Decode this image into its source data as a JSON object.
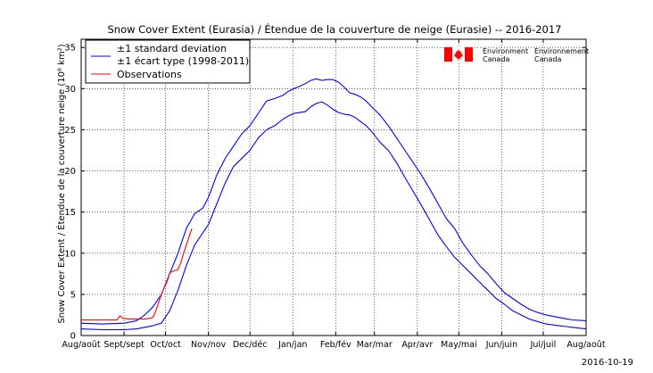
{
  "chart_data": {
    "type": "line",
    "title": "Snow Cover Extent (Eurasia) / Étendue de la couverture de neige (Eurasie) -- 2016-2017",
    "ylabel": "Snow Cover Extent / Étendue de la couverture neige (10⁶ km²)",
    "xlabel": "",
    "ylim": [
      0,
      36
    ],
    "yticks": [
      0,
      5,
      10,
      15,
      20,
      25,
      30,
      35
    ],
    "xlim": [
      0,
      365
    ],
    "grid": true,
    "x_tick_labels": [
      {
        "day": 0,
        "label": "Aug/août"
      },
      {
        "day": 31,
        "label": "Sept/sept"
      },
      {
        "day": 61,
        "label": "Oct/oct"
      },
      {
        "day": 92,
        "label": "Nov/nov"
      },
      {
        "day": 122,
        "label": "Dec/déc"
      },
      {
        "day": 153,
        "label": "Jan/jan"
      },
      {
        "day": 184,
        "label": "Feb/fév"
      },
      {
        "day": 212,
        "label": "Mar/mar"
      },
      {
        "day": 243,
        "label": "Apr/avr"
      },
      {
        "day": 273,
        "label": "May/mai"
      },
      {
        "day": 304,
        "label": "Jun/juin"
      },
      {
        "day": 334,
        "label": "Jul/juil"
      },
      {
        "day": 365,
        "label": "Aug/août"
      }
    ],
    "legend": {
      "placement": "top-left",
      "entries": [
        {
          "label_line1": "±1 standard deviation",
          "label_line2": "±1 écart type (1998-2011)",
          "color": "#0000ff"
        },
        {
          "label_line1": "Observations",
          "label_line2": "",
          "color": "#ff0000"
        }
      ]
    },
    "series": [
      {
        "name": "+1 standard deviation",
        "color": "#0000ff",
        "x": [
          0,
          15,
          31,
          40,
          46,
          52,
          58,
          64,
          70,
          76,
          82,
          88,
          92,
          98,
          104,
          110,
          116,
          122,
          128,
          134,
          140,
          146,
          150,
          154,
          158,
          162,
          166,
          170,
          174,
          178,
          182,
          186,
          190,
          194,
          198,
          202,
          206,
          210,
          216,
          222,
          228,
          234,
          240,
          246,
          252,
          258,
          264,
          270,
          276,
          282,
          288,
          294,
          300,
          306,
          312,
          318,
          324,
          330,
          336,
          345,
          355,
          365
        ],
        "values": [
          1.5,
          1.4,
          1.5,
          1.8,
          2.5,
          3.5,
          5.0,
          7.5,
          10.0,
          13.0,
          14.8,
          15.5,
          16.8,
          19.5,
          21.5,
          23.0,
          24.5,
          25.5,
          27.0,
          28.5,
          28.8,
          29.2,
          29.7,
          30.0,
          30.3,
          30.6,
          31.0,
          31.2,
          31.0,
          31.1,
          31.1,
          30.8,
          30.2,
          29.5,
          29.3,
          29.0,
          28.5,
          27.8,
          26.8,
          25.5,
          24.0,
          22.5,
          21.0,
          19.5,
          17.8,
          16.0,
          14.2,
          13.0,
          11.2,
          9.8,
          8.5,
          7.5,
          6.3,
          5.2,
          4.5,
          3.8,
          3.2,
          2.8,
          2.5,
          2.2,
          1.9,
          1.8
        ]
      },
      {
        "name": "-1 standard deviation",
        "color": "#0000ff",
        "x": [
          0,
          15,
          31,
          40,
          46,
          52,
          58,
          64,
          70,
          76,
          82,
          88,
          92,
          98,
          104,
          110,
          116,
          122,
          128,
          134,
          140,
          146,
          150,
          154,
          158,
          162,
          166,
          170,
          174,
          178,
          182,
          186,
          190,
          194,
          198,
          202,
          206,
          210,
          216,
          222,
          228,
          234,
          240,
          246,
          252,
          258,
          264,
          270,
          276,
          282,
          288,
          294,
          300,
          306,
          312,
          318,
          324,
          330,
          336,
          345,
          355,
          365
        ],
        "values": [
          0.8,
          0.7,
          0.7,
          0.8,
          1.0,
          1.2,
          1.5,
          3.0,
          5.5,
          8.5,
          11.0,
          12.5,
          13.5,
          16.0,
          18.5,
          20.5,
          21.5,
          22.5,
          24.0,
          25.0,
          25.5,
          26.3,
          26.7,
          27.0,
          27.1,
          27.2,
          27.8,
          28.2,
          28.4,
          28.0,
          27.5,
          27.1,
          26.9,
          26.8,
          26.5,
          26.0,
          25.5,
          24.8,
          23.5,
          22.5,
          21.0,
          19.2,
          17.5,
          15.8,
          14.0,
          12.2,
          10.8,
          9.5,
          8.5,
          7.5,
          6.5,
          5.5,
          4.5,
          3.8,
          3.0,
          2.5,
          2.0,
          1.7,
          1.4,
          1.2,
          1.0,
          0.8
        ]
      },
      {
        "name": "Observations",
        "color": "#ff0000",
        "x": [
          0,
          10,
          20,
          24,
          26,
          28,
          30,
          34,
          40,
          46,
          50,
          52,
          54,
          56,
          58,
          60,
          62,
          63,
          64,
          66,
          68,
          70,
          72,
          74,
          76,
          78,
          80
        ],
        "values": [
          1.9,
          1.9,
          1.9,
          1.9,
          1.9,
          2.4,
          2.1,
          2.0,
          2.0,
          2.0,
          2.1,
          2.2,
          3.0,
          4.0,
          5.0,
          5.8,
          6.5,
          7.0,
          7.6,
          7.8,
          7.9,
          8.0,
          8.8,
          10.0,
          11.0,
          12.0,
          13.0
        ]
      }
    ]
  },
  "logo": {
    "text_en_line1": "Environment",
    "text_en_line2": "Canada",
    "text_fr_line1": "Environnement",
    "text_fr_line2": "Canada",
    "flag_red": "#ff0000"
  },
  "date_stamp": "2016-10-19"
}
